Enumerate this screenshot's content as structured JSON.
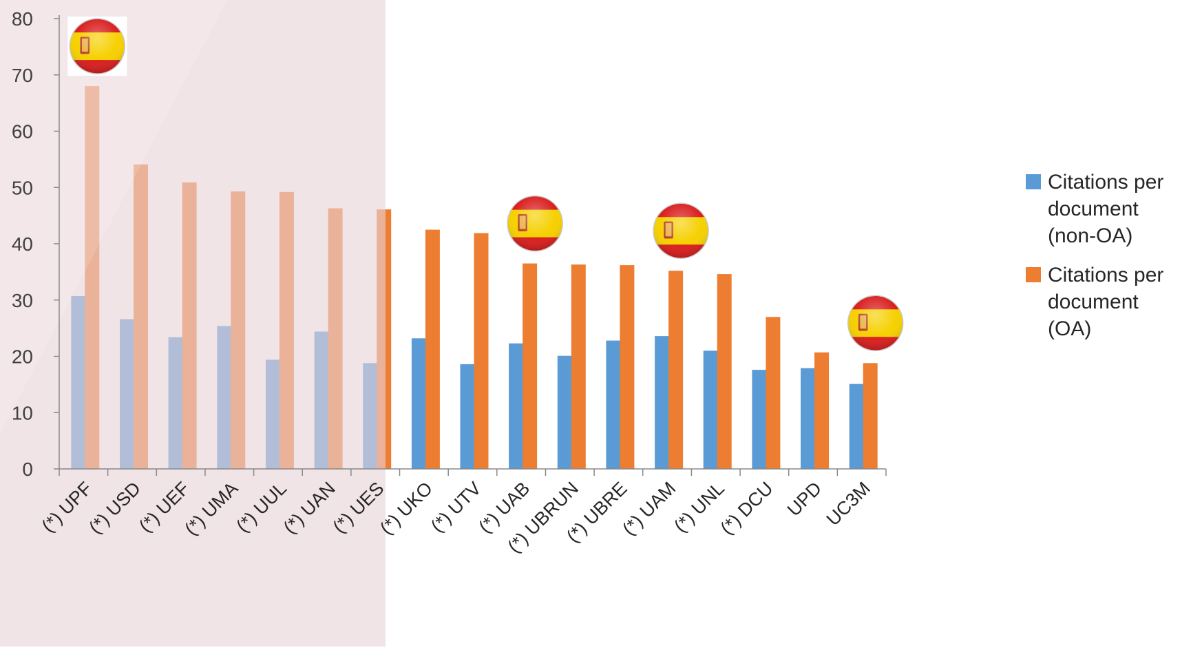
{
  "chart_data": {
    "type": "bar",
    "title": "",
    "xlabel": "",
    "ylabel": "",
    "ylim": [
      0,
      80
    ],
    "yticks": [
      0,
      10,
      20,
      30,
      40,
      50,
      60,
      70,
      80
    ],
    "grid": false,
    "legend_position": "right",
    "categories": [
      "(*) UPF",
      "(*) USD",
      "(*) UEF",
      "(*) UMA",
      "(*) UUL",
      "(*) UAN",
      "(*) UES",
      "(*) UKO",
      "(*) UTV",
      "(*) UAB",
      "(*) UBRUN",
      "(*) UBRE",
      "(*) UAM",
      "(*) UNL",
      "(*) DCU",
      "UPD",
      "UC3M"
    ],
    "series": [
      {
        "name": "Citations per document (non-OA)",
        "legend_lines": [
          "Citations per",
          "document",
          "(non-OA)"
        ],
        "color": "#5B9BD5",
        "values": [
          30.7,
          26.6,
          23.4,
          25.4,
          19.4,
          24.4,
          18.8,
          23.2,
          18.6,
          22.3,
          20.1,
          22.8,
          23.6,
          21.0,
          17.6,
          17.9,
          15.1
        ]
      },
      {
        "name": "Citations per document (OA)",
        "legend_lines": [
          "Citations per",
          "document",
          "(OA)"
        ],
        "color": "#ED7D31",
        "values": [
          68.0,
          54.1,
          50.9,
          49.3,
          49.2,
          46.3,
          46.1,
          42.5,
          41.9,
          36.5,
          36.3,
          36.2,
          35.2,
          34.6,
          27.0,
          20.7,
          18.8
        ]
      }
    ],
    "flag_markers": [
      {
        "category": "(*) UPF",
        "icon": "spain-flag-icon"
      },
      {
        "category": "(*) UAB",
        "icon": "spain-flag-icon"
      },
      {
        "category": "(*) UAM",
        "icon": "spain-flag-icon"
      },
      {
        "category": "UC3M",
        "icon": "spain-flag-icon"
      }
    ]
  },
  "colors": {
    "overlay": "#e9d4d9",
    "axis": "#888888",
    "tick_label": "#404040",
    "flag_red": "#d91d1d",
    "flag_yellow": "#f6d000"
  }
}
